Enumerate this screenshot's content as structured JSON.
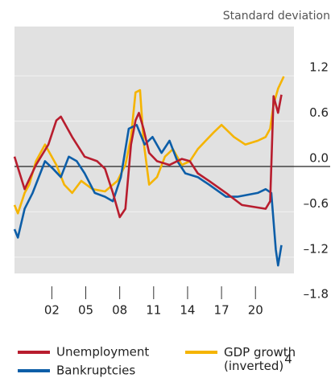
{
  "chart_data": {
    "type": "line",
    "subtitle": "Standard deviation",
    "xlim": [
      1998.7,
      2023.4
    ],
    "xticks": [
      {
        "value": 2002,
        "label": "02"
      },
      {
        "value": 2005,
        "label": "05"
      },
      {
        "value": 2008,
        "label": "08"
      },
      {
        "value": 2011,
        "label": "11"
      },
      {
        "value": 2014,
        "label": "14"
      },
      {
        "value": 2017,
        "label": "17"
      },
      {
        "value": 2020,
        "label": "20"
      }
    ],
    "ylim": [
      -1.8,
      1.85
    ],
    "yticks": [
      1.2,
      0.6,
      {
        "value": 0,
        "label": "0.0"
      },
      {
        "value": -0.6,
        "label": "–0.6"
      },
      {
        "value": -1.2,
        "label": "–1.2"
      },
      {
        "value": -1.8,
        "label": "–1.8"
      }
    ],
    "grid": true,
    "zero_line": true,
    "legend": "bottom",
    "series": [
      {
        "name": "Unemployment",
        "color": "#b81d2e",
        "x": [
          1998.7,
          1999.6,
          2000.6,
          2001.7,
          2002.4,
          2002.8,
          2003.8,
          2004.9,
          2006.0,
          2006.7,
          2007.4,
          2008.0,
          2008.5,
          2009.0,
          2009.4,
          2009.7,
          2010.1,
          2010.6,
          2011.3,
          2012.4,
          2013.5,
          2014.2,
          2014.9,
          2015.9,
          2017.4,
          2018.8,
          2020.9,
          2021.3,
          2021.6,
          2022.0,
          2022.3
        ],
        "values": [
          0.13,
          -0.3,
          0.02,
          0.29,
          0.61,
          0.66,
          0.39,
          0.13,
          0.07,
          -0.03,
          -0.35,
          -0.67,
          -0.56,
          0.29,
          0.61,
          0.71,
          0.5,
          0.18,
          0.07,
          0.02,
          0.1,
          0.07,
          -0.09,
          -0.19,
          -0.35,
          -0.51,
          -0.56,
          -0.46,
          0.93,
          0.71,
          0.95
        ]
      },
      {
        "name": "GDP growth (inverted)",
        "note": "4",
        "color": "#f5b400",
        "x": [
          1998.7,
          1999.0,
          1999.6,
          2000.0,
          2000.6,
          2001.4,
          2002.4,
          2003.1,
          2003.8,
          2004.6,
          2005.6,
          2006.7,
          2007.8,
          2008.5,
          2009.0,
          2009.4,
          2009.8,
          2010.1,
          2010.6,
          2011.3,
          2012.0,
          2012.7,
          2013.5,
          2014.2,
          2014.9,
          2015.6,
          2016.3,
          2017.0,
          2018.1,
          2019.1,
          2020.2,
          2020.9,
          2021.3,
          2021.6,
          2022.0,
          2022.5
        ],
        "values": [
          -0.51,
          -0.62,
          -0.35,
          -0.24,
          0.07,
          0.29,
          0.02,
          -0.24,
          -0.35,
          -0.19,
          -0.3,
          -0.33,
          -0.19,
          0.02,
          0.39,
          0.98,
          1.01,
          0.34,
          -0.24,
          -0.14,
          0.13,
          0.23,
          0.02,
          0.07,
          0.23,
          0.34,
          0.45,
          0.55,
          0.39,
          0.29,
          0.34,
          0.39,
          0.5,
          0.82,
          1.03,
          1.19
        ]
      },
      {
        "name": "Bankruptcies",
        "color": "#0d5ea8",
        "x": [
          1998.7,
          1999.0,
          1999.6,
          2000.3,
          2001.4,
          2002.1,
          2002.8,
          2003.5,
          2004.2,
          2004.9,
          2005.8,
          2006.7,
          2007.4,
          2008.1,
          2008.8,
          2009.5,
          2010.2,
          2010.9,
          2011.7,
          2012.4,
          2013.1,
          2013.8,
          2014.9,
          2015.9,
          2017.4,
          2018.4,
          2020.2,
          2020.9,
          2021.4,
          2021.8,
          2022.0,
          2022.3
        ],
        "values": [
          -0.83,
          -0.94,
          -0.56,
          -0.35,
          0.07,
          -0.03,
          -0.14,
          0.13,
          0.07,
          -0.09,
          -0.35,
          -0.4,
          -0.46,
          -0.14,
          0.5,
          0.55,
          0.29,
          0.39,
          0.18,
          0.34,
          0.07,
          -0.09,
          -0.14,
          -0.24,
          -0.4,
          -0.4,
          -0.35,
          -0.3,
          -0.35,
          -1.1,
          -1.31,
          -1.04
        ]
      }
    ]
  }
}
